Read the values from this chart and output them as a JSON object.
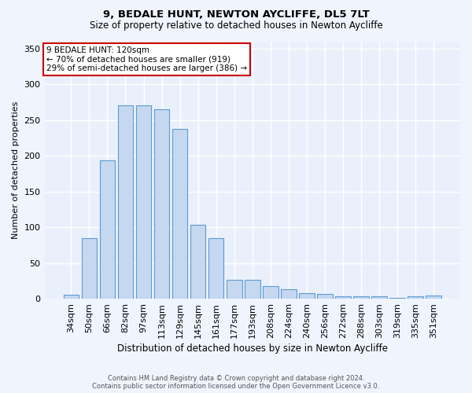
{
  "title1": "9, BEDALE HUNT, NEWTON AYCLIFFE, DL5 7LT",
  "title2": "Size of property relative to detached houses in Newton Aycliffe",
  "xlabel": "Distribution of detached houses by size in Newton Aycliffe",
  "ylabel": "Number of detached properties",
  "categories": [
    "34sqm",
    "50sqm",
    "66sqm",
    "82sqm",
    "97sqm",
    "113sqm",
    "129sqm",
    "145sqm",
    "161sqm",
    "177sqm",
    "193sqm",
    "208sqm",
    "224sqm",
    "240sqm",
    "256sqm",
    "272sqm",
    "288sqm",
    "303sqm",
    "319sqm",
    "335sqm",
    "351sqm"
  ],
  "values": [
    6,
    85,
    193,
    270,
    270,
    265,
    237,
    103,
    85,
    26,
    26,
    18,
    13,
    8,
    7,
    3,
    3,
    3,
    1,
    3,
    4
  ],
  "bar_color": "#c5d8f0",
  "bar_edge_color": "#5b9bd5",
  "annotation_text": "9 BEDALE HUNT: 120sqm\n← 70% of detached houses are smaller (919)\n29% of semi-detached houses are larger (386) →",
  "annotation_box_color": "#ffffff",
  "annotation_box_edge": "#cc0000",
  "ylim": [
    0,
    360
  ],
  "yticks": [
    0,
    50,
    100,
    150,
    200,
    250,
    300,
    350
  ],
  "background_color": "#eaf0fb",
  "grid_color": "#ffffff",
  "fig_background": "#f0f4fd",
  "footer_line1": "Contains HM Land Registry data © Crown copyright and database right 2024.",
  "footer_line2": "Contains public sector information licensed under the Open Government Licence v3.0."
}
